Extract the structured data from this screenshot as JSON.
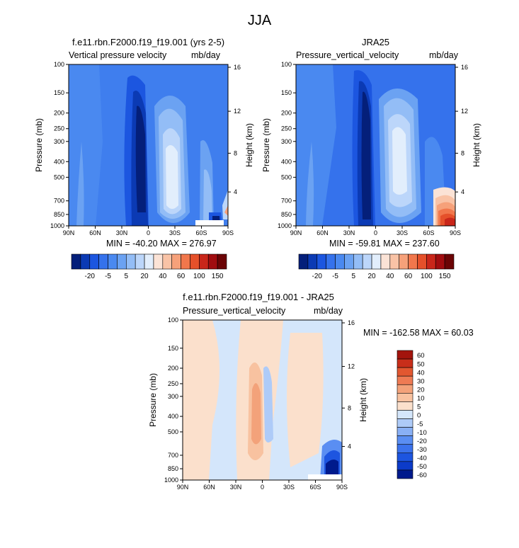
{
  "page": {
    "title": "JJA"
  },
  "colors": {
    "abs_scale": [
      "#041f7a",
      "#0b3ab4",
      "#1c56e0",
      "#3572ec",
      "#4a89f0",
      "#6ba2f2",
      "#93bdf6",
      "#bcd6fa",
      "#e2eefc",
      "#fbe3d6",
      "#f9c3a6",
      "#f6a17a",
      "#f1774c",
      "#e5502a",
      "#c9261a",
      "#a10c0f",
      "#6b0405"
    ],
    "diff_scale": [
      "#001a8c",
      "#0c3bc9",
      "#1d55e0",
      "#3b72ec",
      "#5a8ef2",
      "#89b0f5",
      "#aecbf8",
      "#d4e6fb",
      "#fbe0cc",
      "#f8c2a0",
      "#f3a27a",
      "#ee7b54",
      "#e25730",
      "#c82e1a",
      "#a3140d"
    ]
  },
  "chart_data": [
    {
      "type": "heatmap",
      "title": "f.e11.rbn.F2000.f19_f19.001 (yrs 2-5)",
      "variable_label": "Vertical pressure velocity",
      "units": "mb/day",
      "ylabel": "Pressure (mb)",
      "ylabel_right": "Height (km)",
      "x_ticks": [
        "90N",
        "60N",
        "30N",
        "0",
        "30S",
        "60S",
        "90S"
      ],
      "y_ticks": [
        "100",
        "150",
        "200",
        "250",
        "300",
        "400",
        "500",
        "700",
        "850",
        "1000"
      ],
      "height_ticks": [
        "16",
        "12",
        "8",
        "4"
      ],
      "y_scale": "log",
      "ylim": [
        1000,
        100
      ],
      "stats": "MIN = -40.20   MAX = 276.97",
      "legend_labels": [
        "-20",
        "-5",
        "5",
        "20",
        "40",
        "60",
        "100",
        "150"
      ]
    },
    {
      "type": "heatmap",
      "title": "JRA25",
      "variable_label": "Pressure_vertical_velocity",
      "units": "mb/day",
      "ylabel": "Pressure (mb)",
      "ylabel_right": "Height (km)",
      "x_ticks": [
        "90N",
        "60N",
        "30N",
        "0",
        "30S",
        "60S",
        "90S"
      ],
      "y_ticks": [
        "100",
        "150",
        "200",
        "250",
        "300",
        "400",
        "500",
        "700",
        "850",
        "1000"
      ],
      "height_ticks": [
        "16",
        "12",
        "8",
        "4"
      ],
      "y_scale": "log",
      "ylim": [
        1000,
        100
      ],
      "stats": "MIN = -59.81   MAX = 237.60",
      "legend_labels": [
        "-20",
        "-5",
        "5",
        "20",
        "40",
        "60",
        "100",
        "150"
      ]
    },
    {
      "type": "heatmap",
      "title": "f.e11.rbn.F2000.f19_f19.001 - JRA25",
      "variable_label": "Pressure_vertical_velocity",
      "units": "mb/day",
      "ylabel": "Pressure (mb)",
      "ylabel_right": "Height (km)",
      "x_ticks": [
        "90N",
        "60N",
        "30N",
        "0",
        "30S",
        "60S",
        "90S"
      ],
      "y_ticks": [
        "100",
        "150",
        "200",
        "250",
        "300",
        "400",
        "500",
        "700",
        "850",
        "1000"
      ],
      "height_ticks": [
        "16",
        "12",
        "8",
        "4"
      ],
      "y_scale": "log",
      "ylim": [
        1000,
        100
      ],
      "stats": "MIN = -162.58   MAX = 60.03",
      "legend_labels": [
        "60",
        "50",
        "40",
        "30",
        "20",
        "10",
        "5",
        "0",
        "-5",
        "-10",
        "-20",
        "-30",
        "-40",
        "-50",
        "-60"
      ]
    }
  ]
}
